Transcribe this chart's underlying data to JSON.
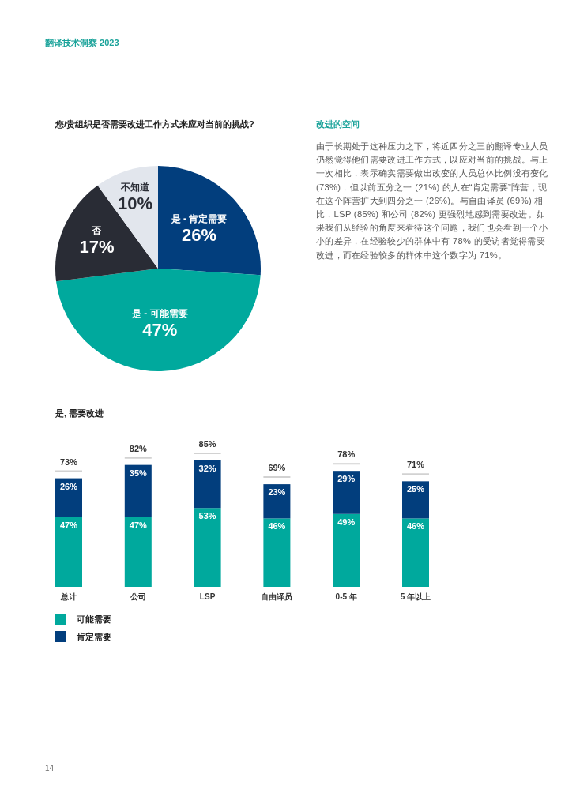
{
  "chart_data": [
    {
      "type": "pie",
      "title": "您/贵组织是否需要改进工作方式来应对当前的挑战?",
      "categories": [
        "是 - 肯定需要",
        "是 - 可能需要",
        "否",
        "不知道"
      ],
      "values": [
        26,
        47,
        17,
        10
      ],
      "colors": [
        "#023e7d",
        "#00a99d",
        "#292c35",
        "#e2e6ed"
      ],
      "value_labels": [
        "26%",
        "47%",
        "17%",
        "10%"
      ],
      "annotations": [
        "翻译技术洞察 2023"
      ]
    },
    {
      "type": "other",
      "title": "改进的空间",
      "annotations": [
        "由于长期处于这种压力之下，将近四分之三的翻译专业人员仍然觉得他们需要改进工作方式，以应对当前的挑战。与上一次相比，表示确实需要做出改变的人员总体比例没有变化 (73%)，但以前五分之一 (21%) 的人在“肯定需要”阵营，现在这个阵营扩大到四分之一 (26%)。与自由译员 (69%) 相比，LSP (85%) 和公司 (82%) 更强烈地感到需要改进。如果我们从经验的角度来看待这个问题，我们也会看到一个小小的差异，在经验较少的群体中有 78% 的受访者觉得需要改进，而在经验较多的群体中这个数字为 71%。"
      ]
    },
    {
      "type": "bar",
      "stacked": true,
      "title": "是, 需要改进",
      "categories": [
        "总计",
        "公司",
        "LSP",
        "自由译员",
        "0-5 年",
        "5 年以上"
      ],
      "series": [
        {
          "name": "可能需要",
          "color": "#00a99d",
          "values": [
            47,
            47,
            53,
            46,
            49,
            46
          ],
          "value_labels": [
            "47%",
            "47%",
            "53%",
            "46%",
            "49%",
            "46%"
          ]
        },
        {
          "name": "肯定需要",
          "color": "#023e7d",
          "values": [
            26,
            35,
            32,
            23,
            29,
            25
          ],
          "value_labels": [
            "26%",
            "35%",
            "32%",
            "23%",
            "29%",
            "25%"
          ]
        }
      ],
      "totals": [
        "73%",
        "82%",
        "85%",
        "69%",
        "78%",
        "71%"
      ],
      "legend": "bottom left",
      "annotations": [
        "14"
      ]
    }
  ]
}
